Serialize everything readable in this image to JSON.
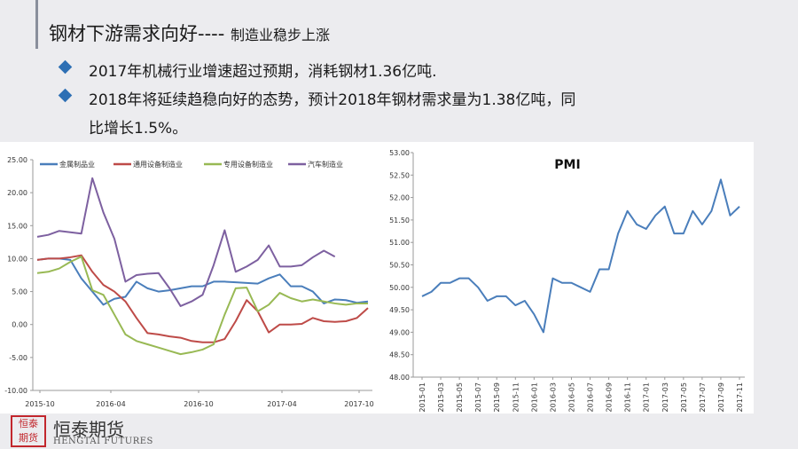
{
  "header": {
    "title_main": "钢材下游需求向好----",
    "title_sub": "制造业稳步上涨"
  },
  "bullets": [
    "2017年机械行业增速超过预期，消耗钢材1.36亿吨.",
    "2018年将延续趋稳向好的态势，预计2018年钢材需求量为1.38亿吨，同",
    "比增长1.5%。"
  ],
  "logo": {
    "cn": "恒泰期货",
    "en": "HENGTAI FUTURES"
  },
  "colors": {
    "accent": "#2d6fb4"
  },
  "chart_data": [
    {
      "type": "line",
      "title": "",
      "xlabel": "",
      "ylabel": "",
      "ylim": [
        -10,
        25
      ],
      "yticks": [
        "-10.00",
        "-5.00",
        "0.00",
        "5.00",
        "10.00",
        "15.00",
        "20.00",
        "25.00"
      ],
      "xtick_labels": [
        "2015-10",
        "2016-04",
        "2016-10",
        "2017-04",
        "2017-10"
      ],
      "legend_position": "top",
      "grid": false,
      "series": [
        {
          "name": "金属制品业",
          "color": "#4a7ebb",
          "values": [
            9.8,
            10.0,
            10.0,
            9.8,
            7.0,
            5.0,
            3.0,
            3.9,
            4.2,
            6.5,
            5.5,
            5.0,
            5.2,
            5.5,
            5.8,
            5.8,
            6.5,
            6.5,
            6.4,
            6.3,
            6.2,
            7.0,
            7.6,
            5.8,
            5.8,
            5.0,
            3.2,
            3.8,
            3.7,
            3.3,
            3.5
          ]
        },
        {
          "name": "通用设备制造业",
          "color": "#be4b48",
          "values": [
            9.8,
            10.0,
            10.0,
            10.2,
            10.5,
            8.0,
            6.0,
            5.0,
            3.5,
            1.0,
            -1.3,
            -1.5,
            -1.8,
            -2.0,
            -2.5,
            -2.7,
            -2.7,
            -2.2,
            0.5,
            3.7,
            2.0,
            -1.2,
            0.0,
            0.0,
            0.1,
            1.0,
            0.5,
            0.4,
            0.5,
            1.0,
            2.5
          ]
        },
        {
          "name": "专用设备制造业",
          "color": "#98b954",
          "values": [
            7.8,
            8.0,
            8.5,
            9.5,
            10.3,
            5.2,
            4.5,
            1.5,
            -1.5,
            -2.5,
            -3.0,
            -3.5,
            -4.0,
            -4.5,
            -4.2,
            -3.8,
            -3.0,
            1.5,
            5.5,
            5.6,
            2.0,
            3.0,
            4.8,
            4.0,
            3.5,
            3.8,
            3.5,
            3.2,
            3.0,
            3.2,
            3.2
          ]
        },
        {
          "name": "汽车制造业",
          "color": "#7d60a0",
          "values": [
            13.3,
            13.6,
            14.2,
            14.0,
            13.8,
            22.2,
            17.0,
            13.0,
            6.5,
            7.5,
            7.7,
            7.8,
            5.5,
            2.8,
            3.5,
            4.5,
            9.0,
            14.3,
            8.0,
            8.8,
            9.8,
            12.0,
            8.8,
            8.8,
            9.0,
            10.2,
            11.2,
            10.3
          ]
        }
      ]
    },
    {
      "type": "line",
      "title": "PMI",
      "xlabel": "",
      "ylabel": "",
      "ylim": [
        48.0,
        53.0
      ],
      "yticks": [
        "48.00",
        "48.50",
        "49.00",
        "49.50",
        "50.00",
        "50.50",
        "51.00",
        "51.50",
        "52.00",
        "52.50",
        "53.00"
      ],
      "grid": false,
      "legend_position": "none",
      "series": [
        {
          "name": "",
          "color": "#4a7ebb",
          "x": [
            "2015-01",
            "2015-02",
            "2015-03",
            "2015-04",
            "2015-05",
            "2015-06",
            "2015-07",
            "2015-08",
            "2015-09",
            "2015-10",
            "2015-11",
            "2015-12",
            "2016-01",
            "2016-02",
            "2016-03",
            "2016-04",
            "2016-05",
            "2016-06",
            "2016-07",
            "2016-08",
            "2016-09",
            "2016-10",
            "2016-11",
            "2016-12",
            "2017-01",
            "2017-02",
            "2017-03",
            "2017-04",
            "2017-05",
            "2017-06",
            "2017-07",
            "2017-08",
            "2017-09",
            "2017-10",
            "2017-11"
          ],
          "values": [
            49.8,
            49.9,
            50.1,
            50.1,
            50.2,
            50.2,
            50.0,
            49.7,
            49.8,
            49.8,
            49.6,
            49.7,
            49.4,
            49.0,
            50.2,
            50.1,
            50.1,
            50.0,
            49.9,
            50.4,
            50.4,
            51.2,
            51.7,
            51.4,
            51.3,
            51.6,
            51.8,
            51.2,
            51.2,
            51.7,
            51.4,
            51.7,
            52.4,
            51.6,
            51.8
          ]
        }
      ]
    }
  ]
}
